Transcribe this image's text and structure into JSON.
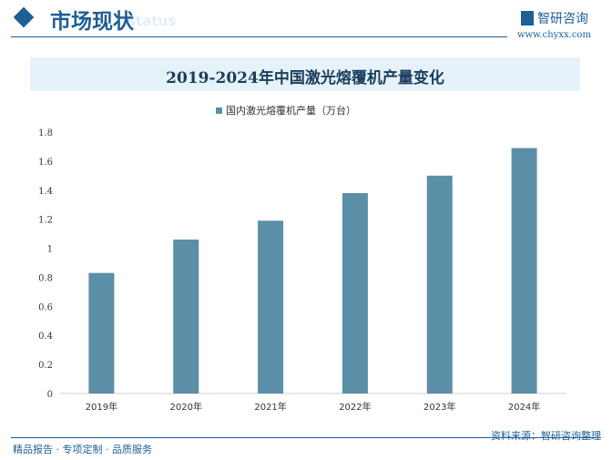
{
  "header": {
    "title": "市场现状",
    "subtitle": "status",
    "brand": "智研咨询",
    "website": "www.chyxx.com"
  },
  "chart_data": {
    "type": "bar",
    "title": "2019-2024年中国激光熔覆机产量变化",
    "categories": [
      "2019年",
      "2020年",
      "2021年",
      "2022年",
      "2023年",
      "2024年"
    ],
    "series": [
      {
        "name": "国内激光熔覆机产量（万台）",
        "values": [
          0.83,
          1.06,
          1.19,
          1.38,
          1.5,
          1.69
        ],
        "color": "#5b8fa8"
      }
    ],
    "yticks": [
      "0",
      "0.2",
      "0.4",
      "0.6",
      "0.8",
      "1",
      "1.2",
      "1.4",
      "1.6",
      "1.8"
    ],
    "ylim": [
      0,
      1.8
    ],
    "grid": false,
    "legend": "top"
  },
  "footer": {
    "source": "资料来源：智研咨询整理",
    "slogan": "精品报告 · 专项定制 · 品质服务"
  }
}
